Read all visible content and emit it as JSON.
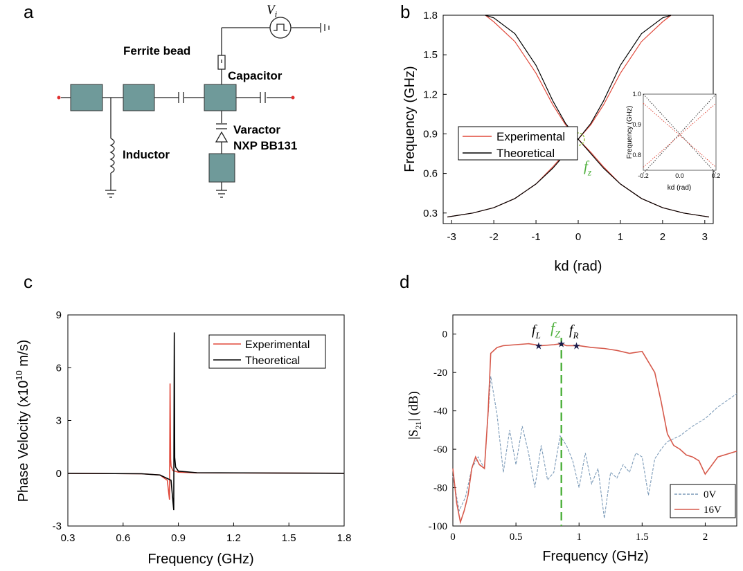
{
  "panels": {
    "a": {
      "letter": "a",
      "source_label": "V",
      "source_sub": "i",
      "ferrite_label": "Ferrite bead",
      "capacitor_label": "Capacitor",
      "varactor_label_1": "Varactor",
      "varactor_label_2": "NXP BB131",
      "inductor_label": "Inductor"
    },
    "b": {
      "letter": "b",
      "fz_main": "f",
      "fz_sub": "z",
      "inset_ylabel": "Frequency (GHz)",
      "inset_xlabel": "kd (rad)",
      "inset_yticks": [
        "1.0",
        "0.9",
        "0.8"
      ],
      "inset_xticks": [
        "-0.2",
        "0.0",
        "0.2"
      ]
    },
    "c": {
      "letter": "c"
    },
    "d": {
      "letter": "d",
      "markers": [
        {
          "main": "f",
          "sub": "L"
        },
        {
          "main": "f",
          "sub": "Z"
        },
        {
          "main": "f",
          "sub": "R"
        }
      ],
      "ylabel_main": "|S",
      "ylabel_sub": "21",
      "ylabel_unit": "| (dB)"
    }
  },
  "colors": {
    "experimental": "#e0483a",
    "theoretical": "#000000",
    "s21_0v": "#7b9ab8",
    "s21_16v": "#d6594b",
    "fz_line": "#4caf3a",
    "component": "#6f9a9a"
  },
  "chart_data": [
    {
      "panel": "b",
      "type": "line",
      "xlabel": "kd (rad)",
      "ylabel": "Frequency (GHz)",
      "xlim": [
        -3.2,
        3.2
      ],
      "ylim": [
        0.22,
        1.8
      ],
      "xticks": [
        -3,
        -2,
        -1,
        0,
        1,
        2,
        3
      ],
      "yticks": [
        0.3,
        0.6,
        0.9,
        1.2,
        1.5,
        1.8
      ],
      "legend_position": "center-left",
      "series": [
        {
          "name": "Experimental",
          "color": "#e0483a",
          "lower_branch": {
            "x": [
              0,
              0.3,
              0.6,
              1.0,
              1.5,
              2.0,
              2.5,
              3.1
            ],
            "y": [
              0.86,
              0.76,
              0.65,
              0.52,
              0.41,
              0.34,
              0.3,
              0.27
            ]
          },
          "upper_branch": {
            "x": [
              0,
              0.3,
              0.6,
              1.0,
              1.5,
              2.0,
              2.2
            ],
            "y": [
              0.86,
              0.97,
              1.12,
              1.36,
              1.6,
              1.75,
              1.8
            ]
          }
        },
        {
          "name": "Theoretical",
          "color": "#000000",
          "lower_branch": {
            "x": [
              0,
              0.3,
              0.6,
              1.0,
              1.5,
              2.0,
              2.5,
              3.1
            ],
            "y": [
              0.86,
              0.75,
              0.64,
              0.52,
              0.41,
              0.34,
              0.3,
              0.27
            ]
          },
          "upper_branch": {
            "x": [
              0,
              0.3,
              0.6,
              1.0,
              1.5,
              2.0,
              2.2
            ],
            "y": [
              0.86,
              0.98,
              1.15,
              1.42,
              1.66,
              1.78,
              1.8
            ]
          }
        }
      ]
    },
    {
      "panel": "c",
      "type": "line",
      "xlabel": "Frequency (GHz)",
      "ylabel": "Phase Velocity (x10^10 m/s)",
      "xlim": [
        0.3,
        1.8
      ],
      "ylim": [
        -3,
        9
      ],
      "xticks": [
        "0.3",
        "0.6",
        "0.9",
        "1.2",
        "1.5",
        "1.8"
      ],
      "yticks": [
        "-3",
        "0",
        "3",
        "6",
        "9"
      ],
      "legend_position": "top-right",
      "series": [
        {
          "name": "Experimental",
          "color": "#e0483a",
          "x": [
            0.3,
            0.7,
            0.8,
            0.84,
            0.852,
            0.855,
            0.858,
            0.86,
            0.87,
            0.9,
            1.0,
            1.8
          ],
          "y": [
            0,
            -0.03,
            -0.1,
            -0.4,
            -1.5,
            5.1,
            0.8,
            0.4,
            0.15,
            0.06,
            0.02,
            0
          ]
        },
        {
          "name": "Theoretical",
          "color": "#000000",
          "x": [
            0.3,
            0.7,
            0.8,
            0.86,
            0.875,
            0.878,
            0.88,
            0.885,
            0.9,
            1.0,
            1.8
          ],
          "y": [
            0,
            -0.03,
            -0.1,
            -0.4,
            -2.1,
            8.0,
            0.9,
            0.35,
            0.12,
            0.03,
            0
          ]
        }
      ]
    },
    {
      "panel": "d",
      "type": "line",
      "xlabel": "Frequency (GHz)",
      "ylabel": "|S21| (dB)",
      "xlim": [
        0,
        2.25
      ],
      "ylim": [
        -100,
        10
      ],
      "xticks": [
        "0",
        "0.5",
        "1",
        "1.5",
        "2"
      ],
      "yticks": [
        "0",
        "-20",
        "-40",
        "-60",
        "-80",
        "-100"
      ],
      "legend_position": "bottom-right",
      "fz_line_x": 0.86,
      "marker_points": [
        {
          "x": 0.68,
          "y": -6
        },
        {
          "x": 0.86,
          "y": -5
        },
        {
          "x": 0.98,
          "y": -6
        }
      ],
      "series": [
        {
          "name": "0V",
          "color": "#7b9ab8",
          "style": "dashed",
          "x": [
            0,
            0.05,
            0.1,
            0.15,
            0.2,
            0.25,
            0.3,
            0.35,
            0.4,
            0.45,
            0.5,
            0.55,
            0.6,
            0.65,
            0.7,
            0.75,
            0.8,
            0.85,
            0.9,
            0.95,
            1.0,
            1.05,
            1.1,
            1.15,
            1.2,
            1.25,
            1.3,
            1.35,
            1.4,
            1.45,
            1.5,
            1.55,
            1.6,
            1.65,
            1.7,
            1.8,
            1.9,
            2.0,
            2.1,
            2.25
          ],
          "y": [
            -74,
            -92,
            -85,
            -70,
            -64,
            -70,
            -22,
            -42,
            -72,
            -50,
            -68,
            -48,
            -62,
            -80,
            -58,
            -76,
            -72,
            -53,
            -58,
            -66,
            -80,
            -62,
            -78,
            -70,
            -96,
            -72,
            -75,
            -68,
            -72,
            -62,
            -64,
            -84,
            -65,
            -60,
            -56,
            -53,
            -48,
            -44,
            -38,
            -31
          ]
        },
        {
          "name": "16V",
          "color": "#d6594b",
          "style": "solid",
          "x": [
            0,
            0.03,
            0.06,
            0.09,
            0.12,
            0.15,
            0.18,
            0.21,
            0.25,
            0.28,
            0.3,
            0.35,
            0.4,
            0.5,
            0.6,
            0.7,
            0.8,
            0.86,
            0.9,
            1.0,
            1.1,
            1.2,
            1.3,
            1.4,
            1.5,
            1.6,
            1.65,
            1.7,
            1.75,
            1.8,
            1.85,
            1.9,
            1.95,
            2.0,
            2.1,
            2.25
          ],
          "y": [
            -70,
            -88,
            -98,
            -92,
            -84,
            -70,
            -64,
            -68,
            -70,
            -40,
            -10,
            -7,
            -6,
            -5.5,
            -5,
            -6,
            -5.5,
            -5,
            -6,
            -6,
            -7,
            -7.5,
            -8.5,
            -10,
            -9,
            -20,
            -35,
            -52,
            -58,
            -60,
            -63,
            -64,
            -66,
            -73,
            -64,
            -61
          ]
        }
      ]
    }
  ]
}
